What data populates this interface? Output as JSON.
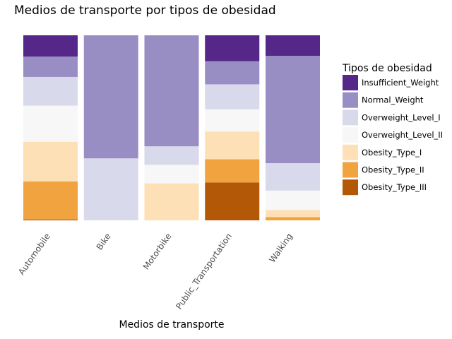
{
  "chart_data": {
    "type": "bar",
    "stacked": "percent",
    "title": "Medios de transporte por tipos de obesidad",
    "xlabel": "Medios de transporte",
    "ylabel": "",
    "ylim": [
      0,
      1
    ],
    "grid": false,
    "legend_position": "right",
    "legend_title": "Tipos de obesidad",
    "categories": [
      "Automobile",
      "Bike",
      "Motorbike",
      "Public_Transportation",
      "Walking"
    ],
    "series": [
      {
        "name": "Obesity_Type_III",
        "color": "#b35806",
        "values": [
          0.005,
          0.0,
          0.0,
          0.205,
          0.0
        ]
      },
      {
        "name": "Obesity_Type_II",
        "color": "#f1a340",
        "values": [
          0.205,
          0.0,
          0.0,
          0.125,
          0.018
        ]
      },
      {
        "name": "Obesity_Type_I",
        "color": "#fee0b6",
        "values": [
          0.215,
          0.0,
          0.2,
          0.15,
          0.038
        ]
      },
      {
        "name": "Overweight_Level_II",
        "color": "#f7f7f7",
        "values": [
          0.195,
          0.0,
          0.1,
          0.12,
          0.105
        ]
      },
      {
        "name": "Overweight_Level_I",
        "color": "#d8daeb",
        "values": [
          0.155,
          0.335,
          0.1,
          0.135,
          0.148
        ]
      },
      {
        "name": "Normal_Weight",
        "color": "#998ec3",
        "values": [
          0.11,
          0.665,
          0.6,
          0.125,
          0.58
        ]
      },
      {
        "name": "Insufficient_Weight",
        "color": "#542788",
        "values": [
          0.115,
          0.0,
          0.0,
          0.14,
          0.111
        ]
      }
    ]
  }
}
